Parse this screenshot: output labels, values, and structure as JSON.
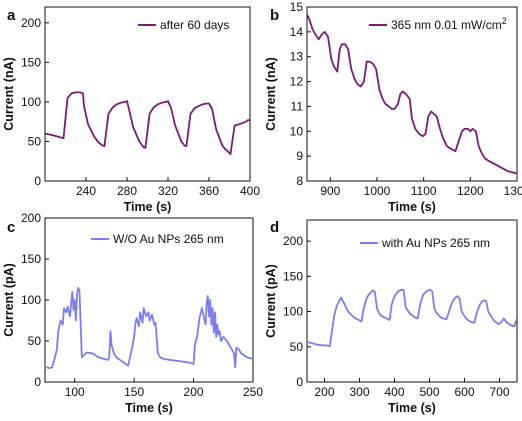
{
  "chart_data": [
    {
      "panel": "a",
      "type": "line",
      "xlabel": "Time (s)",
      "ylabel": "Current (nA)",
      "xlim": [
        200,
        400
      ],
      "ylim": [
        0,
        220
      ],
      "xticks": [
        240,
        280,
        320,
        360,
        400
      ],
      "yticks": [
        0,
        50,
        100,
        150,
        200
      ],
      "legend_position": "top-right",
      "series": [
        {
          "name": "after 60 days",
          "color": "#7b1a7b",
          "x": [
            200,
            210,
            218,
            222,
            226,
            230,
            234,
            237,
            238,
            242,
            248,
            252,
            256,
            258,
            262,
            266,
            270,
            274,
            278,
            280,
            282,
            286,
            292,
            296,
            298,
            302,
            306,
            310,
            314,
            318,
            320,
            323,
            327,
            333,
            336,
            338,
            342,
            346,
            350,
            354,
            358,
            360,
            363,
            367,
            373,
            376,
            378,
            381,
            385,
            392,
            396,
            398,
            400
          ],
          "y": [
            60,
            57,
            54,
            105,
            111,
            112,
            112,
            111,
            95,
            72,
            56,
            49,
            45,
            44,
            85,
            93,
            97,
            99,
            100,
            101,
            90,
            68,
            50,
            43,
            42,
            85,
            93,
            97,
            99,
            100,
            101,
            92,
            70,
            50,
            45,
            44,
            85,
            92,
            95,
            97,
            98,
            98,
            91,
            65,
            45,
            40,
            38,
            34,
            70,
            73,
            75,
            77,
            77
          ]
        }
      ]
    },
    {
      "panel": "b",
      "type": "line",
      "xlabel": "Time (s)",
      "ylabel": "Current (nA)",
      "xlim": [
        850,
        1300
      ],
      "ylim": [
        8,
        15
      ],
      "xticks": [
        900,
        1000,
        1100,
        1200,
        1300
      ],
      "yticks": [
        8,
        9,
        10,
        11,
        12,
        13,
        14,
        15
      ],
      "legend_position": "top-right",
      "series": [
        {
          "name": "365 nm 0.01 mW/cm2",
          "color": "#7b1a7b",
          "x": [
            850,
            855,
            862,
            868,
            875,
            882,
            888,
            895,
            902,
            908,
            915,
            920,
            925,
            932,
            938,
            945,
            952,
            958,
            965,
            972,
            978,
            985,
            992,
            998,
            1005,
            1012,
            1018,
            1025,
            1032,
            1038,
            1045,
            1050,
            1055,
            1062,
            1070,
            1075,
            1082,
            1090,
            1098,
            1104,
            1110,
            1116,
            1122,
            1128,
            1135,
            1142,
            1150,
            1158,
            1168,
            1175,
            1182,
            1188,
            1195,
            1200,
            1205,
            1212,
            1218,
            1225,
            1232,
            1240,
            1250,
            1260,
            1270,
            1280,
            1290,
            1300
          ],
          "y": [
            14.7,
            14.5,
            14.1,
            13.9,
            13.7,
            13.9,
            14.0,
            13.8,
            12.9,
            12.6,
            12.4,
            13.3,
            13.5,
            13.5,
            13.3,
            12.5,
            12.1,
            11.9,
            11.8,
            12.0,
            12.8,
            12.8,
            12.7,
            12.5,
            11.7,
            11.3,
            11.1,
            11.0,
            10.9,
            10.9,
            11.1,
            11.5,
            11.6,
            11.5,
            11.3,
            10.5,
            10.1,
            9.9,
            9.8,
            9.9,
            10.6,
            10.8,
            10.7,
            10.6,
            10.1,
            9.7,
            9.4,
            9.3,
            9.2,
            9.6,
            10.0,
            10.1,
            10.1,
            10.0,
            10.1,
            10.0,
            9.4,
            9.1,
            8.9,
            8.8,
            8.7,
            8.6,
            8.5,
            8.4,
            8.35,
            8.3
          ]
        }
      ]
    },
    {
      "panel": "c",
      "type": "line",
      "xlabel": "Time (s)",
      "ylabel": "Current (pA)",
      "xlim": [
        75,
        250
      ],
      "ylim": [
        0,
        200
      ],
      "xticks": [
        100,
        150,
        200,
        250
      ],
      "yticks": [
        0,
        50,
        100,
        150,
        200
      ],
      "legend_position": "top-right",
      "series": [
        {
          "name": "W/O Au NPs 265 nm",
          "color": "#7d7df0",
          "x": [
            76,
            79,
            81,
            83,
            85,
            86,
            88,
            90,
            91,
            93,
            94,
            96,
            97,
            98,
            99,
            100,
            101,
            102,
            103,
            104,
            106,
            110,
            115,
            120,
            125,
            128,
            129,
            130,
            131,
            133,
            135,
            137,
            140,
            143,
            145,
            148,
            150,
            151,
            152,
            154,
            155,
            157,
            158,
            160,
            162,
            163,
            165,
            167,
            168,
            170,
            172,
            175,
            180,
            185,
            190,
            195,
            198,
            200,
            201,
            203,
            205,
            207,
            210,
            211,
            212,
            213,
            214,
            215,
            216,
            217,
            218,
            219,
            220,
            221,
            222,
            223,
            225,
            228,
            230,
            232,
            234,
            235,
            236,
            238,
            240,
            243,
            245,
            248,
            250
          ],
          "y": [
            18,
            17,
            18,
            28,
            40,
            60,
            75,
            70,
            90,
            85,
            92,
            80,
            95,
            110,
            88,
            100,
            75,
            108,
            115,
            110,
            30,
            36,
            35,
            30,
            28,
            27,
            30,
            62,
            45,
            35,
            30,
            28,
            25,
            22,
            20,
            40,
            55,
            70,
            78,
            68,
            85,
            72,
            90,
            80,
            85,
            75,
            82,
            70,
            72,
            35,
            30,
            28,
            27,
            26,
            25,
            24,
            23,
            22,
            45,
            55,
            78,
            90,
            70,
            95,
            105,
            80,
            100,
            70,
            90,
            60,
            85,
            55,
            70,
            58,
            62,
            50,
            55,
            50,
            45,
            40,
            35,
            18,
            42,
            40,
            35,
            32,
            30,
            29,
            28
          ]
        }
      ]
    },
    {
      "panel": "d",
      "type": "line",
      "xlabel": "Time (s)",
      "ylabel": "Current (pA)",
      "xlim": [
        150,
        750
      ],
      "ylim": [
        0,
        230
      ],
      "xticks": [
        200,
        300,
        400,
        500,
        600,
        700
      ],
      "yticks": [
        0,
        50,
        100,
        150,
        200
      ],
      "legend_position": "top-right",
      "series": [
        {
          "name": "with Au NPs 265 nm",
          "color": "#7d7df0",
          "x": [
            150,
            165,
            180,
            195,
            205,
            215,
            222,
            228,
            235,
            242,
            248,
            252,
            258,
            262,
            268,
            275,
            282,
            290,
            298,
            306,
            312,
            320,
            326,
            332,
            338,
            344,
            350,
            356,
            362,
            370,
            378,
            386,
            392,
            400,
            406,
            412,
            420,
            426,
            432,
            440,
            446,
            452,
            458,
            466,
            474,
            482,
            490,
            496,
            502,
            508,
            514,
            520,
            526,
            532,
            540,
            548,
            556,
            562,
            568,
            574,
            580,
            586,
            592,
            598,
            605,
            612,
            620,
            628,
            636,
            644,
            650,
            656,
            662,
            668,
            674,
            680,
            686,
            692,
            698,
            705,
            712,
            720,
            728,
            735,
            742,
            748,
            750
          ],
          "y": [
            57,
            55,
            53,
            52,
            52,
            51,
            75,
            95,
            108,
            115,
            120,
            115,
            110,
            105,
            100,
            96,
            93,
            90,
            88,
            86,
            105,
            118,
            124,
            127,
            130,
            128,
            104,
            98,
            94,
            92,
            90,
            88,
            110,
            122,
            126,
            129,
            131,
            130,
            106,
            100,
            96,
            94,
            92,
            90,
            112,
            124,
            128,
            130,
            131,
            128,
            104,
            98,
            95,
            92,
            90,
            89,
            100,
            110,
            116,
            120,
            122,
            118,
            100,
            95,
            90,
            87,
            85,
            84,
            100,
            110,
            114,
            116,
            115,
            100,
            95,
            90,
            86,
            84,
            82,
            85,
            90,
            85,
            82,
            80,
            79,
            88,
            90
          ]
        }
      ]
    }
  ]
}
